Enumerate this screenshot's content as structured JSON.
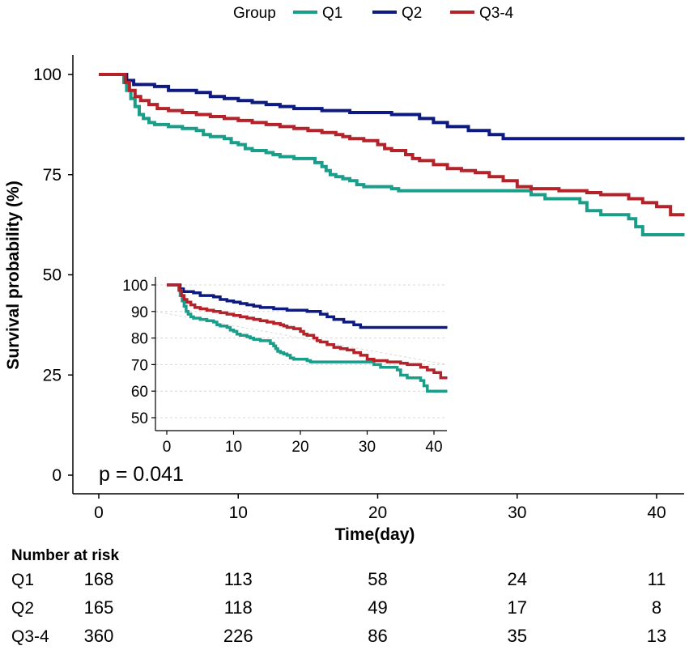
{
  "chart_data": {
    "type": "line",
    "subtype": "kaplan-meier",
    "legend": {
      "title": "Group",
      "position": "top",
      "entries": [
        "Q1",
        "Q2",
        "Q3-4"
      ]
    },
    "colors": {
      "Q1": "#1a9e8a",
      "Q2": "#0d1a80",
      "Q3-4": "#b5232a"
    },
    "xlabel": "Time(day)",
    "ylabel": "Survival probability (%)",
    "xlim": [
      -2,
      42
    ],
    "ylim": [
      -3,
      105
    ],
    "xticks": [
      0,
      10,
      20,
      30,
      40
    ],
    "yticks": [
      0,
      25,
      50,
      75,
      100
    ],
    "annotation": "p = 0.041",
    "series": [
      {
        "name": "Q1",
        "points": [
          [
            0,
            100
          ],
          [
            1.5,
            100
          ],
          [
            1.8,
            98
          ],
          [
            2,
            96
          ],
          [
            2.3,
            94
          ],
          [
            2.6,
            92
          ],
          [
            2.9,
            90
          ],
          [
            3.2,
            89
          ],
          [
            3.6,
            88
          ],
          [
            4,
            87.5
          ],
          [
            5,
            87
          ],
          [
            6,
            86.5
          ],
          [
            7,
            86
          ],
          [
            7.5,
            85
          ],
          [
            8,
            84.5
          ],
          [
            9,
            84
          ],
          [
            9.5,
            83
          ],
          [
            10,
            82.5
          ],
          [
            10.5,
            81.5
          ],
          [
            11,
            81
          ],
          [
            12,
            80.5
          ],
          [
            12.5,
            80
          ],
          [
            13,
            79.5
          ],
          [
            14,
            79
          ],
          [
            15,
            79
          ],
          [
            15.5,
            78
          ],
          [
            16,
            77
          ],
          [
            16.3,
            76
          ],
          [
            16.6,
            75
          ],
          [
            17,
            74.5
          ],
          [
            17.5,
            74
          ],
          [
            18,
            73.5
          ],
          [
            18.5,
            72.5
          ],
          [
            19,
            72
          ],
          [
            21,
            71.5
          ],
          [
            21.5,
            71
          ],
          [
            30,
            71
          ],
          [
            31,
            70
          ],
          [
            32,
            69
          ],
          [
            34.5,
            68
          ],
          [
            35,
            66
          ],
          [
            36,
            65
          ],
          [
            38,
            64
          ],
          [
            38.5,
            62
          ],
          [
            39,
            60
          ],
          [
            40,
            60
          ],
          [
            42,
            60
          ]
        ]
      },
      {
        "name": "Q2",
        "points": [
          [
            0,
            100
          ],
          [
            1.5,
            100
          ],
          [
            2,
            98.5
          ],
          [
            2.5,
            97.5
          ],
          [
            4,
            97
          ],
          [
            5,
            96
          ],
          [
            7,
            95.5
          ],
          [
            8,
            94.5
          ],
          [
            9,
            94
          ],
          [
            10,
            93.5
          ],
          [
            11,
            93
          ],
          [
            12,
            92.5
          ],
          [
            13,
            92
          ],
          [
            14,
            91.5
          ],
          [
            16,
            91
          ],
          [
            18,
            90.5
          ],
          [
            21,
            90
          ],
          [
            23,
            89
          ],
          [
            24,
            88
          ],
          [
            25,
            87
          ],
          [
            26.5,
            86
          ],
          [
            28,
            85
          ],
          [
            29,
            84
          ],
          [
            42,
            84
          ]
        ]
      },
      {
        "name": "Q3-4",
        "points": [
          [
            0,
            100
          ],
          [
            1.6,
            100
          ],
          [
            1.9,
            98
          ],
          [
            2.2,
            96
          ],
          [
            2.6,
            94.5
          ],
          [
            3,
            93.5
          ],
          [
            3.6,
            92.5
          ],
          [
            4.2,
            91.5
          ],
          [
            5,
            91
          ],
          [
            6,
            90.5
          ],
          [
            7,
            90
          ],
          [
            8,
            89.5
          ],
          [
            9,
            89
          ],
          [
            10,
            88.5
          ],
          [
            11,
            88
          ],
          [
            12,
            87.5
          ],
          [
            13,
            87
          ],
          [
            14,
            86.5
          ],
          [
            15,
            86
          ],
          [
            16,
            85.5
          ],
          [
            17,
            85
          ],
          [
            17.5,
            84.5
          ],
          [
            18,
            84
          ],
          [
            19,
            83.5
          ],
          [
            20,
            82.5
          ],
          [
            20.5,
            81.5
          ],
          [
            21,
            81
          ],
          [
            22,
            80
          ],
          [
            22.5,
            79
          ],
          [
            23,
            78.5
          ],
          [
            24,
            77.5
          ],
          [
            25,
            76.5
          ],
          [
            26,
            76
          ],
          [
            27,
            75.5
          ],
          [
            28,
            74.5
          ],
          [
            29,
            73.5
          ],
          [
            30,
            72
          ],
          [
            31,
            71.5
          ],
          [
            33,
            71
          ],
          [
            35,
            70.5
          ],
          [
            36,
            70
          ],
          [
            38,
            69
          ],
          [
            39,
            68
          ],
          [
            40,
            67
          ],
          [
            41,
            65
          ],
          [
            42,
            65
          ]
        ]
      }
    ],
    "inset": {
      "xlim": [
        -1,
        42
      ],
      "ylim": [
        47,
        101
      ],
      "xticks": [
        0,
        10,
        20,
        30,
        40
      ],
      "yticks": [
        50,
        60,
        70,
        80,
        90,
        100
      ]
    },
    "risk_table": {
      "title": "Number at risk",
      "time_points": [
        0,
        10,
        20,
        30,
        40
      ],
      "rows": [
        {
          "group": "Q1",
          "values": [
            "168",
            "113",
            "58",
            "24",
            "11"
          ]
        },
        {
          "group": "Q2",
          "values": [
            "165",
            "118",
            "49",
            "17",
            "8"
          ]
        },
        {
          "group": "Q3-4",
          "values": [
            "360",
            "226",
            "86",
            "35",
            "13"
          ]
        }
      ]
    }
  }
}
